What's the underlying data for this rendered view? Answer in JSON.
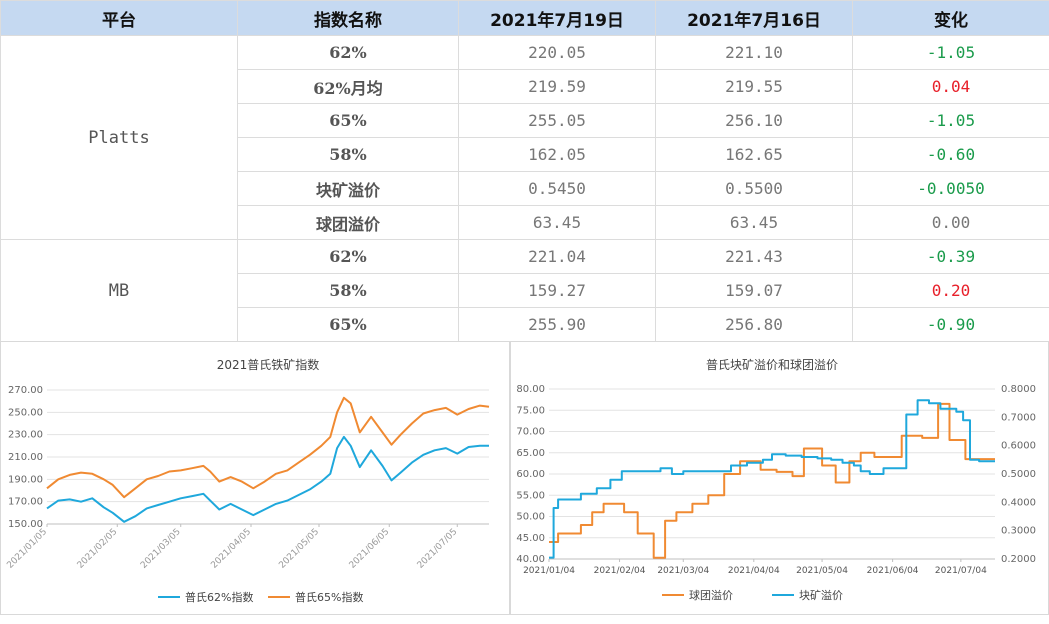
{
  "table": {
    "headers": [
      "平台",
      "指数名称",
      "2021年7月19日",
      "2021年7月16日",
      "变化"
    ],
    "groups": [
      {
        "platform": "Platts",
        "rows": [
          {
            "name": "62%",
            "d1": "220.05",
            "d2": "221.10",
            "change": "-1.05",
            "dir": "neg"
          },
          {
            "name": "62%月均",
            "d1": "219.59",
            "d2": "219.55",
            "change": "0.04",
            "dir": "pos"
          },
          {
            "name": "65%",
            "d1": "255.05",
            "d2": "256.10",
            "change": "-1.05",
            "dir": "neg"
          },
          {
            "name": "58%",
            "d1": "162.05",
            "d2": "162.65",
            "change": "-0.60",
            "dir": "neg"
          },
          {
            "name": "块矿溢价",
            "d1": "0.5450",
            "d2": "0.5500",
            "change": "-0.0050",
            "dir": "neg"
          },
          {
            "name": "球团溢价",
            "d1": "63.45",
            "d2": "63.45",
            "change": "0.00",
            "dir": "zero"
          }
        ]
      },
      {
        "platform": "MB",
        "rows": [
          {
            "name": "62%",
            "d1": "221.04",
            "d2": "221.43",
            "change": "-0.39",
            "dir": "neg"
          },
          {
            "name": "58%",
            "d1": "159.27",
            "d2": "159.07",
            "change": "0.20",
            "dir": "pos"
          },
          {
            "name": "65%",
            "d1": "255.90",
            "d2": "256.80",
            "change": "-0.90",
            "dir": "neg"
          }
        ]
      }
    ]
  },
  "colors": {
    "blue": "#1fa8dc",
    "orange": "#f08a32",
    "negative": "#1a9b4b",
    "positive": "#e8202a",
    "header_bg": "#c5d9f1"
  },
  "chart_data": [
    {
      "type": "line",
      "title": "2021普氏铁矿指数",
      "x_labels": [
        "2021/01/05",
        "2021/02/05",
        "2021/03/05",
        "2021/04/05",
        "2021/05/05",
        "2021/06/05",
        "2021/07/05"
      ],
      "x_range": [
        "2021-01-05",
        "2021-07-19"
      ],
      "ylim": [
        150,
        270
      ],
      "yticks": [
        "150.00",
        "170.00",
        "190.00",
        "210.00",
        "230.00",
        "250.00",
        "270.00"
      ],
      "legend_position": "bottom",
      "series": [
        {
          "name": "普氏62%指数",
          "color": "#1fa8dc",
          "points": [
            [
              "2021-01-05",
              164
            ],
            [
              "2021-01-10",
              171
            ],
            [
              "2021-01-15",
              172
            ],
            [
              "2021-01-20",
              170
            ],
            [
              "2021-01-25",
              173
            ],
            [
              "2021-01-30",
              165
            ],
            [
              "2021-02-03",
              160
            ],
            [
              "2021-02-08",
              152
            ],
            [
              "2021-02-13",
              157
            ],
            [
              "2021-02-18",
              164
            ],
            [
              "2021-02-23",
              167
            ],
            [
              "2021-02-28",
              170
            ],
            [
              "2021-03-05",
              173
            ],
            [
              "2021-03-10",
              175
            ],
            [
              "2021-03-15",
              177
            ],
            [
              "2021-03-18",
              171
            ],
            [
              "2021-03-22",
              163
            ],
            [
              "2021-03-27",
              168
            ],
            [
              "2021-04-01",
              163
            ],
            [
              "2021-04-06",
              158
            ],
            [
              "2021-04-11",
              163
            ],
            [
              "2021-04-16",
              168
            ],
            [
              "2021-04-21",
              171
            ],
            [
              "2021-04-26",
              176
            ],
            [
              "2021-05-01",
              181
            ],
            [
              "2021-05-06",
              188
            ],
            [
              "2021-05-10",
              195
            ],
            [
              "2021-05-13",
              218
            ],
            [
              "2021-05-16",
              228
            ],
            [
              "2021-05-19",
              220
            ],
            [
              "2021-05-23",
              201
            ],
            [
              "2021-05-28",
              216
            ],
            [
              "2021-06-02",
              202
            ],
            [
              "2021-06-06",
              189
            ],
            [
              "2021-06-10",
              196
            ],
            [
              "2021-06-15",
              205
            ],
            [
              "2021-06-20",
              212
            ],
            [
              "2021-06-25",
              216
            ],
            [
              "2021-06-30",
              218
            ],
            [
              "2021-07-05",
              213
            ],
            [
              "2021-07-10",
              219
            ],
            [
              "2021-07-15",
              220
            ],
            [
              "2021-07-19",
              220
            ]
          ]
        },
        {
          "name": "普氏65%指数",
          "color": "#f08a32",
          "points": [
            [
              "2021-01-05",
              182
            ],
            [
              "2021-01-10",
              190
            ],
            [
              "2021-01-15",
              194
            ],
            [
              "2021-01-20",
              196
            ],
            [
              "2021-01-25",
              195
            ],
            [
              "2021-01-30",
              190
            ],
            [
              "2021-02-03",
              185
            ],
            [
              "2021-02-08",
              174
            ],
            [
              "2021-02-13",
              182
            ],
            [
              "2021-02-18",
              190
            ],
            [
              "2021-02-23",
              193
            ],
            [
              "2021-02-28",
              197
            ],
            [
              "2021-03-05",
              198
            ],
            [
              "2021-03-10",
              200
            ],
            [
              "2021-03-15",
              202
            ],
            [
              "2021-03-18",
              197
            ],
            [
              "2021-03-22",
              188
            ],
            [
              "2021-03-27",
              192
            ],
            [
              "2021-04-01",
              188
            ],
            [
              "2021-04-06",
              182
            ],
            [
              "2021-04-11",
              188
            ],
            [
              "2021-04-16",
              195
            ],
            [
              "2021-04-21",
              198
            ],
            [
              "2021-04-26",
              205
            ],
            [
              "2021-05-01",
              212
            ],
            [
              "2021-05-06",
              220
            ],
            [
              "2021-05-10",
              228
            ],
            [
              "2021-05-13",
              250
            ],
            [
              "2021-05-16",
              263
            ],
            [
              "2021-05-19",
              258
            ],
            [
              "2021-05-23",
              232
            ],
            [
              "2021-05-28",
              246
            ],
            [
              "2021-06-02",
              232
            ],
            [
              "2021-06-06",
              221
            ],
            [
              "2021-06-10",
              230
            ],
            [
              "2021-06-15",
              240
            ],
            [
              "2021-06-20",
              249
            ],
            [
              "2021-06-25",
              252
            ],
            [
              "2021-06-30",
              254
            ],
            [
              "2021-07-05",
              248
            ],
            [
              "2021-07-10",
              253
            ],
            [
              "2021-07-15",
              256
            ],
            [
              "2021-07-19",
              255
            ]
          ]
        }
      ]
    },
    {
      "type": "line",
      "title": "普氏块矿溢价和球团溢价",
      "x_labels": [
        "2021/01/04",
        "2021/02/04",
        "2021/03/04",
        "2021/04/04",
        "2021/05/04",
        "2021/06/04",
        "2021/07/04"
      ],
      "x_range": [
        "2021-01-04",
        "2021-07-19"
      ],
      "ylim_left": [
        40,
        80
      ],
      "ylim_right": [
        0.2,
        0.8
      ],
      "yticks_left": [
        "40.00",
        "45.00",
        "50.00",
        "55.00",
        "60.00",
        "65.00",
        "70.00",
        "75.00",
        "80.00"
      ],
      "yticks_right": [
        "0.2000",
        "0.3000",
        "0.4000",
        "0.5000",
        "0.6000",
        "0.7000",
        "0.8000"
      ],
      "legend_position": "bottom",
      "series": [
        {
          "name": "球团溢价",
          "color": "#f08a32",
          "axis": "left",
          "step": true,
          "points": [
            [
              "2021-01-04",
              44
            ],
            [
              "2021-01-08",
              46
            ],
            [
              "2021-01-18",
              48
            ],
            [
              "2021-01-23",
              51
            ],
            [
              "2021-01-28",
              53
            ],
            [
              "2021-02-06",
              51
            ],
            [
              "2021-02-12",
              46
            ],
            [
              "2021-02-19",
              40.3
            ],
            [
              "2021-02-24",
              49
            ],
            [
              "2021-03-01",
              51
            ],
            [
              "2021-03-08",
              53
            ],
            [
              "2021-03-15",
              55
            ],
            [
              "2021-03-22",
              60
            ],
            [
              "2021-03-29",
              63
            ],
            [
              "2021-04-07",
              61
            ],
            [
              "2021-04-14",
              60.5
            ],
            [
              "2021-04-21",
              59.5
            ],
            [
              "2021-04-26",
              66
            ],
            [
              "2021-05-04",
              62
            ],
            [
              "2021-05-10",
              58
            ],
            [
              "2021-05-16",
              63
            ],
            [
              "2021-05-21",
              65
            ],
            [
              "2021-05-27",
              64
            ],
            [
              "2021-06-03",
              64
            ],
            [
              "2021-06-08",
              69
            ],
            [
              "2021-06-17",
              68.5
            ],
            [
              "2021-06-24",
              76.5
            ],
            [
              "2021-06-29",
              68
            ],
            [
              "2021-07-06",
              63.5
            ],
            [
              "2021-07-19",
              63.5
            ]
          ]
        },
        {
          "name": "块矿溢价",
          "color": "#1fa8dc",
          "axis": "right",
          "step": true,
          "points": [
            [
              "2021-01-04",
              0.205
            ],
            [
              "2021-01-06",
              0.38
            ],
            [
              "2021-01-08",
              0.41
            ],
            [
              "2021-01-18",
              0.43
            ],
            [
              "2021-01-25",
              0.45
            ],
            [
              "2021-01-31",
              0.48
            ],
            [
              "2021-02-05",
              0.51
            ],
            [
              "2021-02-22",
              0.52
            ],
            [
              "2021-02-27",
              0.5
            ],
            [
              "2021-03-04",
              0.51
            ],
            [
              "2021-03-25",
              0.53
            ],
            [
              "2021-04-01",
              0.54
            ],
            [
              "2021-04-08",
              0.55
            ],
            [
              "2021-04-12",
              0.57
            ],
            [
              "2021-04-18",
              0.565
            ],
            [
              "2021-04-25",
              0.56
            ],
            [
              "2021-05-02",
              0.555
            ],
            [
              "2021-05-08",
              0.55
            ],
            [
              "2021-05-13",
              0.54
            ],
            [
              "2021-05-18",
              0.53
            ],
            [
              "2021-05-21",
              0.51
            ],
            [
              "2021-05-25",
              0.5
            ],
            [
              "2021-05-31",
              0.52
            ],
            [
              "2021-06-10",
              0.71
            ],
            [
              "2021-06-15",
              0.76
            ],
            [
              "2021-06-20",
              0.75
            ],
            [
              "2021-06-25",
              0.73
            ],
            [
              "2021-07-02",
              0.72
            ],
            [
              "2021-07-05",
              0.69
            ],
            [
              "2021-07-08",
              0.55
            ],
            [
              "2021-07-12",
              0.545
            ],
            [
              "2021-07-19",
              0.545
            ]
          ]
        }
      ]
    }
  ]
}
